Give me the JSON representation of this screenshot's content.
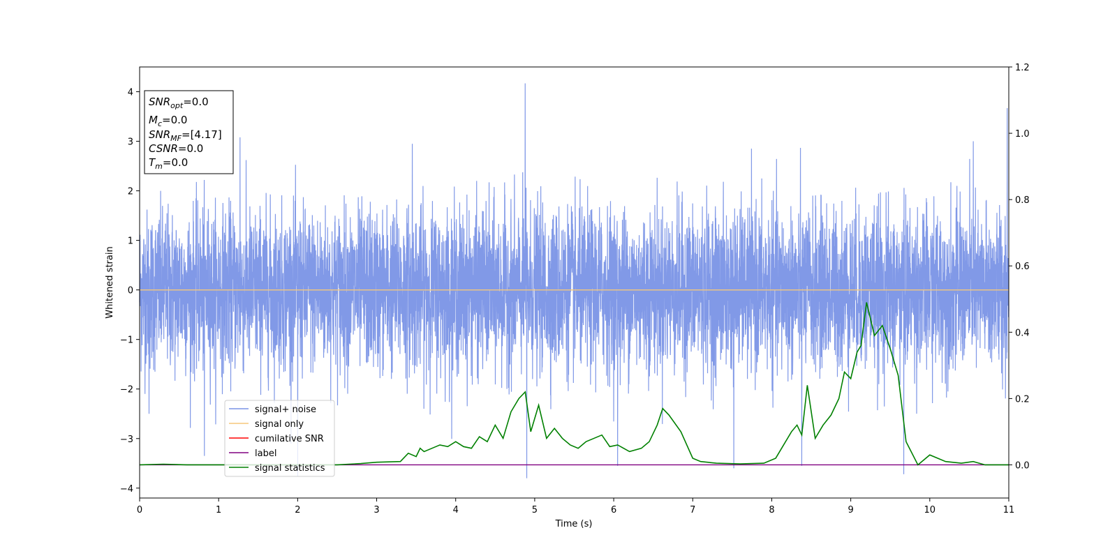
{
  "chart_data": {
    "type": "line",
    "title": "",
    "xlabel": "Time (s)",
    "ylabel": "Whitened strain",
    "xlim": [
      0,
      11
    ],
    "ylim": [
      -4.2,
      4.5
    ],
    "y2lim": [
      -0.1,
      1.2
    ],
    "xticks": [
      "0",
      "1",
      "2",
      "3",
      "4",
      "5",
      "6",
      "7",
      "8",
      "9",
      "10",
      "11"
    ],
    "yticks": [
      "−4",
      "−3",
      "−2",
      "−1",
      "0",
      "1",
      "2",
      "3",
      "4"
    ],
    "y2ticks": [
      "0.0",
      "0.2",
      "0.4",
      "0.6",
      "0.8",
      "1.0",
      "1.2"
    ],
    "grid": false,
    "legend_position": "lower-left",
    "series": [
      {
        "name": "signal+ noise",
        "axis": "left",
        "color": "#7a93e6",
        "representation": "dense gaussian noise, sd ~0.8",
        "values": [
          4.17,
          -3.8,
          3.67,
          -3.77,
          3.1,
          2.2,
          -3.3
        ]
      },
      {
        "name": "signal only",
        "axis": "left",
        "color": "#f5c77a",
        "x": [
          0,
          11
        ],
        "values": [
          0,
          0
        ]
      },
      {
        "name": "cumilative SNR",
        "axis": "left",
        "color": "#ff0000",
        "x": [],
        "values": []
      },
      {
        "name": "label",
        "axis": "right",
        "color": "#800080",
        "x": [
          0,
          11
        ],
        "values": [
          0,
          0
        ]
      },
      {
        "name": "signal statistics",
        "axis": "right",
        "color": "#008000",
        "x": [
          0,
          0.3,
          0.6,
          1.0,
          1.5,
          2.0,
          2.5,
          2.8,
          3.0,
          3.3,
          3.4,
          3.5,
          3.55,
          3.6,
          3.7,
          3.8,
          3.9,
          4.0,
          4.1,
          4.2,
          4.3,
          4.4,
          4.5,
          4.6,
          4.7,
          4.8,
          4.88,
          4.95,
          5.05,
          5.15,
          5.25,
          5.35,
          5.45,
          5.55,
          5.65,
          5.75,
          5.85,
          5.95,
          6.05,
          6.2,
          6.35,
          6.45,
          6.55,
          6.62,
          6.7,
          6.85,
          7.0,
          7.1,
          7.3,
          7.6,
          7.9,
          8.05,
          8.15,
          8.25,
          8.32,
          8.38,
          8.45,
          8.55,
          8.65,
          8.75,
          8.85,
          8.92,
          9.0,
          9.08,
          9.13,
          9.2,
          9.3,
          9.4,
          9.5,
          9.6,
          9.7,
          9.85,
          10.0,
          10.2,
          10.4,
          10.55,
          10.7,
          11.0
        ],
        "values": [
          0.0,
          0.002,
          0.0,
          0.0,
          0.0,
          0.0,
          0.0,
          0.004,
          0.008,
          0.01,
          0.035,
          0.025,
          0.05,
          0.04,
          0.05,
          0.06,
          0.055,
          0.07,
          0.055,
          0.05,
          0.085,
          0.07,
          0.12,
          0.08,
          0.16,
          0.2,
          0.22,
          0.1,
          0.18,
          0.08,
          0.11,
          0.08,
          0.06,
          0.05,
          0.07,
          0.08,
          0.09,
          0.055,
          0.06,
          0.04,
          0.05,
          0.07,
          0.12,
          0.17,
          0.15,
          0.1,
          0.02,
          0.01,
          0.005,
          0.003,
          0.005,
          0.02,
          0.06,
          0.1,
          0.12,
          0.09,
          0.24,
          0.08,
          0.12,
          0.15,
          0.2,
          0.28,
          0.26,
          0.34,
          0.36,
          0.49,
          0.39,
          0.42,
          0.35,
          0.27,
          0.07,
          0.0,
          0.03,
          0.01,
          0.005,
          0.01,
          0.0,
          0.0
        ]
      }
    ],
    "annotation": {
      "lines": [
        {
          "main": "SNR",
          "sub": "opt",
          "value": "=0.0"
        },
        {
          "main": "M",
          "sub": "c",
          "value": "=0.0"
        },
        {
          "main": "SNR",
          "sub": "MF",
          "value": "=[4.17]"
        },
        {
          "main": "CSNR",
          "sub": "",
          "value": "=0.0"
        },
        {
          "main": "T",
          "sub": "m",
          "value": "=0.0"
        }
      ]
    }
  }
}
